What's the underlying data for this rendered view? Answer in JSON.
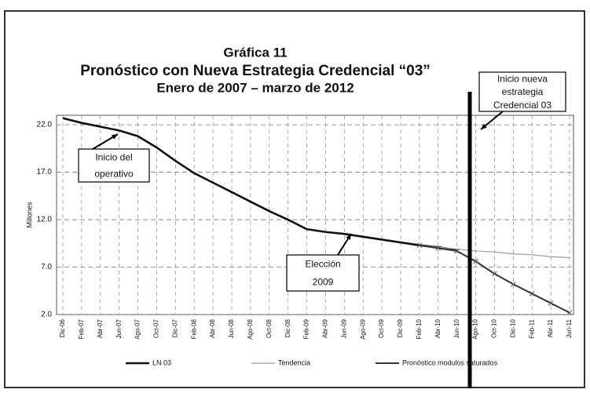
{
  "chart_data": {
    "type": "line",
    "title": [
      "Gráfica 11",
      "Pronóstico con Nueva Estrategia Credencial “03”",
      "Enero de 2007 – marzo de 2012"
    ],
    "ylabel": "Millones",
    "categories": [
      "Dic-06",
      "Feb-07",
      "Abr-07",
      "Jun-07",
      "Ago-07",
      "Oct-07",
      "Dic-07",
      "Feb-08",
      "Abr-08",
      "Jun-08",
      "Ago-08",
      "Oct-08",
      "Dic-08",
      "Feb-09",
      "Abr-09",
      "Jun-09",
      "Ago-09",
      "Oct-09",
      "Dic-09",
      "Feb-10",
      "Abr-10",
      "Jun-10",
      "Ago-10",
      "Oct-10",
      "Dic-10",
      "Feb-11",
      "Abr-11",
      "Jun-11"
    ],
    "series": [
      {
        "name": "LN 03",
        "color": "#111111",
        "values": [
          22.7,
          22.2,
          21.8,
          21.4,
          20.8,
          19.6,
          18.2,
          16.9,
          15.9,
          14.9,
          13.9,
          12.9,
          12.0,
          11.0,
          10.7,
          10.5,
          10.2,
          9.9,
          9.6,
          9.3,
          9.1,
          8.8,
          null,
          null,
          null,
          null,
          null,
          null
        ]
      },
      {
        "name": "Tendencia",
        "color": "#999999",
        "values": [
          null,
          null,
          null,
          null,
          null,
          null,
          null,
          null,
          null,
          null,
          null,
          null,
          null,
          null,
          null,
          null,
          null,
          null,
          null,
          9.3,
          9.1,
          8.9,
          8.7,
          8.6,
          8.4,
          8.3,
          8.1,
          8.0
        ]
      },
      {
        "name": "Pronóstico modulos saturados",
        "color": "#333333",
        "values": [
          null,
          null,
          null,
          null,
          null,
          null,
          null,
          null,
          null,
          null,
          null,
          null,
          null,
          null,
          null,
          null,
          null,
          null,
          null,
          9.3,
          9.0,
          8.7,
          7.6,
          6.3,
          5.2,
          4.2,
          3.2,
          2.2
        ]
      }
    ],
    "ylim": [
      2,
      23
    ],
    "yticks": [
      {
        "value": 2,
        "label": "2.0"
      },
      {
        "value": 7,
        "label": "7.0"
      },
      {
        "value": 12,
        "label": "12.0"
      },
      {
        "value": 17,
        "label": "17.0"
      },
      {
        "value": 22,
        "label": "22.0"
      }
    ],
    "grid": true,
    "annotations": [
      [
        "Inicio del",
        "operativo"
      ],
      [
        "Elección",
        "2009"
      ],
      [
        "Inicio nueva",
        "estrategia",
        "Credencial 03"
      ]
    ]
  }
}
